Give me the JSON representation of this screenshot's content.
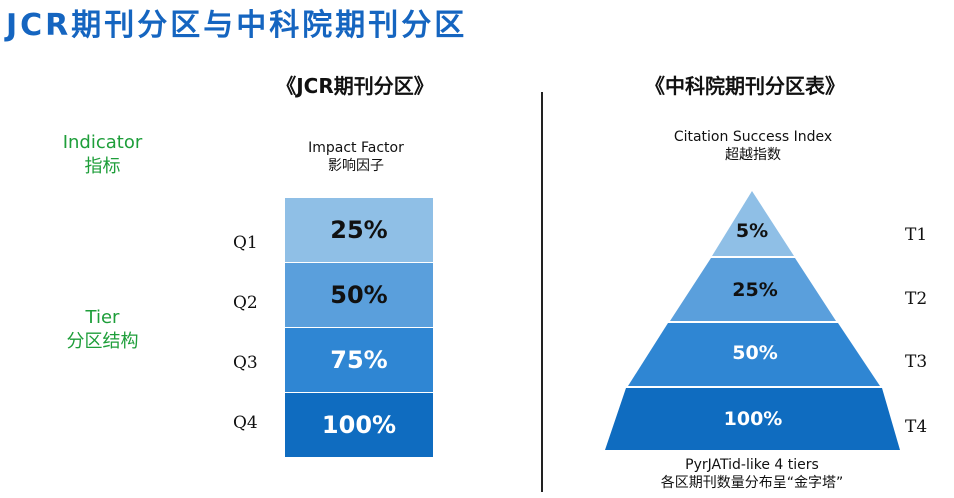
{
  "title": "JCR期刊分区与中科院期刊分区",
  "jcr": {
    "heading": "《JCR期刊分区》",
    "indicator_label_en": "Indicator",
    "indicator_label_zh": "指标",
    "tier_label_en": "Tier",
    "tier_label_zh": "分区结构",
    "metric_en": "Impact Factor",
    "metric_zh": "影响因子",
    "tiers": [
      {
        "name": "Q1",
        "value": "25%",
        "color": "#8fbfe6",
        "text_color": "#111111"
      },
      {
        "name": "Q2",
        "value": "50%",
        "color": "#5a9fdc",
        "text_color": "#111111"
      },
      {
        "name": "Q3",
        "value": "75%",
        "color": "#2f86d3",
        "text_color": "#ffffff"
      },
      {
        "name": "Q4",
        "value": "100%",
        "color": "#0f6cc0",
        "text_color": "#ffffff"
      }
    ]
  },
  "cas": {
    "heading": "《中科院期刊分区表》",
    "metric_en": "Citation Success Index",
    "metric_zh": "超越指数",
    "tiers": [
      {
        "name": "T1",
        "value": "5%",
        "color": "#8fbfe6",
        "text_color": "#111111"
      },
      {
        "name": "T2",
        "value": "25%",
        "color": "#5a9fdc",
        "text_color": "#111111"
      },
      {
        "name": "T3",
        "value": "50%",
        "color": "#2f86d3",
        "text_color": "#ffffff"
      },
      {
        "name": "T4",
        "value": "100%",
        "color": "#0f6cc0",
        "text_color": "#ffffff"
      }
    ],
    "footer_en": "PyrJATid-like 4 tiers",
    "footer_zh": "各区期刊数量分布呈“金字塔”"
  }
}
